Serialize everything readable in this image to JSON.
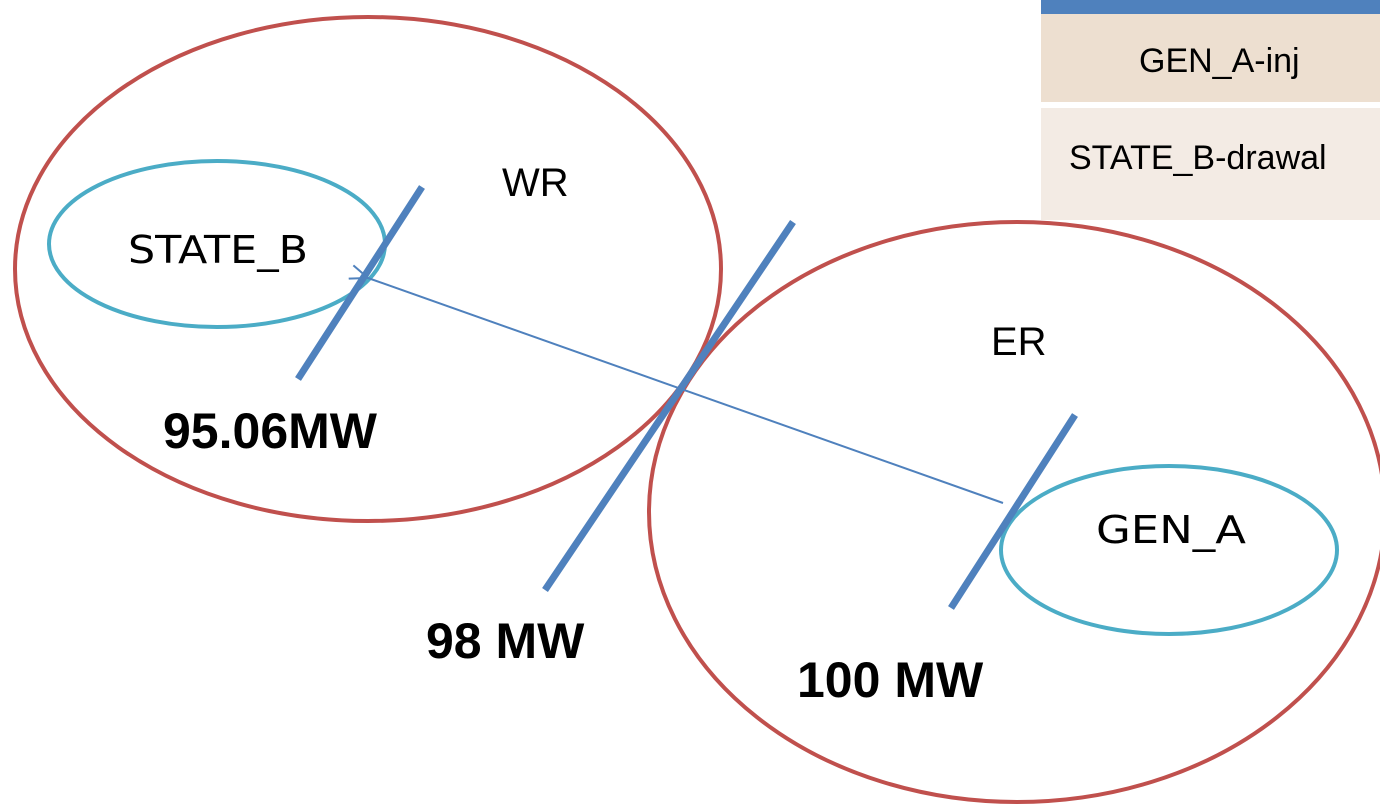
{
  "diagram": {
    "regions": [
      {
        "id": "wr",
        "label": "WR",
        "stroke": "#c0504d"
      },
      {
        "id": "er",
        "label": "ER",
        "stroke": "#c0504d"
      }
    ],
    "nodes": [
      {
        "id": "state_b",
        "label": "STATE_B",
        "stroke": "#4bacc6"
      },
      {
        "id": "gen_a",
        "label": "GEN_A",
        "stroke": "#4bacc6"
      }
    ],
    "flows": [
      {
        "id": "flow-state-b",
        "value": "95.06MW"
      },
      {
        "id": "flow-boundary",
        "value": "98 MW"
      },
      {
        "id": "flow-gen-a",
        "value": "100 MW"
      }
    ],
    "arrow": {
      "from": "GEN_A",
      "to": "STATE_B",
      "color": "#4f81bd"
    },
    "cut_line_color": "#4f81bd"
  },
  "table": {
    "header_color": "#4f81bd",
    "rows": [
      "GEN_A-inj",
      "STATE_B-drawal"
    ]
  }
}
